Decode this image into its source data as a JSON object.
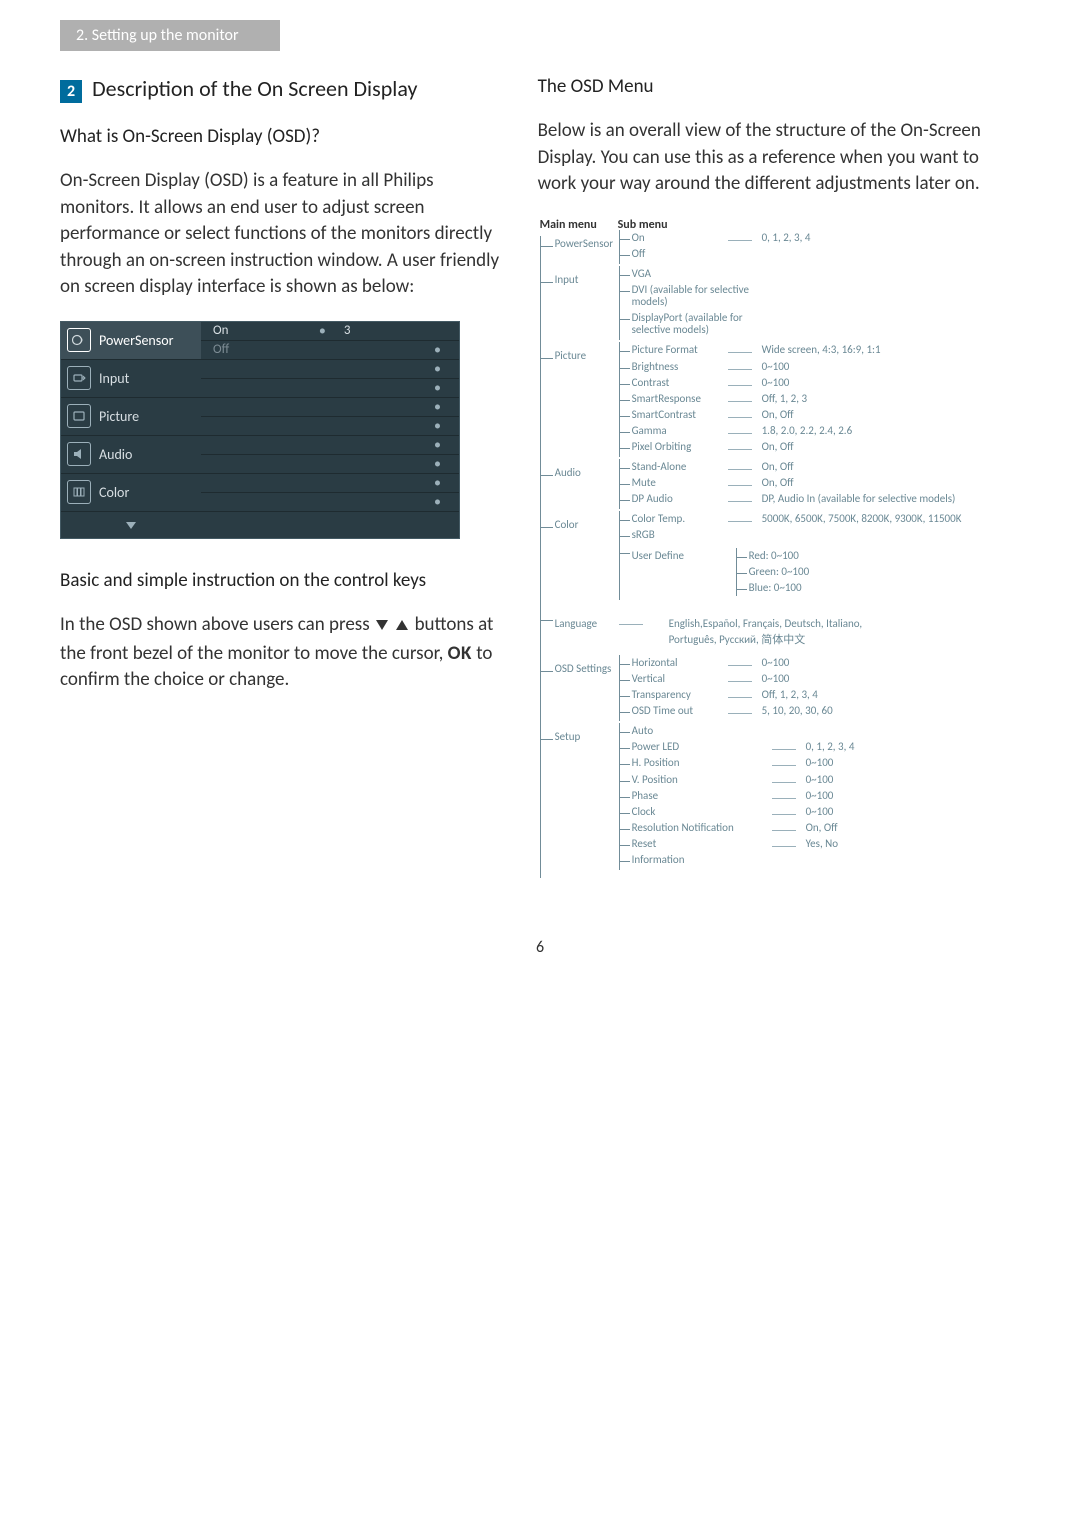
{
  "colors": {
    "header_bg": "#b0b0b0",
    "section_box_bg": "#006c9d",
    "osd_bg": "#2a3c44",
    "osd_border": "#445a64",
    "tree_line": "#718c98",
    "tree_text": "#6a8894"
  },
  "header": {
    "breadcrumb": "2. Setting up the monitor"
  },
  "left": {
    "section_number": "2",
    "section_title": "Description of the On Screen Display",
    "subtitle1": "What is On-Screen Display (OSD)?",
    "p1": "On-Screen Display (OSD) is a feature in all Philips monitors. It allows an end user to adjust screen performance or select functions of the monitors directly through an on-screen instruction window. A user friendly on screen display interface is shown as below:",
    "osd_screenshot": {
      "items": [
        {
          "name": "PowerSensor",
          "sub": [
            "On",
            "Off"
          ],
          "selected": true,
          "value": "3",
          "value_row": 0,
          "icon": "power"
        },
        {
          "name": "Input",
          "sub": [
            "",
            ""
          ],
          "icon": "input"
        },
        {
          "name": "Picture",
          "sub": [
            "",
            ""
          ],
          "icon": "picture"
        },
        {
          "name": "Audio",
          "sub": [
            "",
            ""
          ],
          "icon": "audio"
        },
        {
          "name": "Color",
          "sub": [
            "",
            ""
          ],
          "icon": "color"
        }
      ]
    },
    "subtitle2": "Basic and simple instruction on the control keys",
    "p2_a": "In the OSD shown above users can press ",
    "p2_b": " buttons at the front bezel of the monitor to move the cursor,  ",
    "p2_ok": "OK",
    "p2_c": " to confirm the choice or change."
  },
  "right": {
    "subtitle": "The OSD Menu",
    "p1": "Below is an overall view of the structure of the On-Screen Display. You can use this as a reference when you want to work your way around the different adjustments later on.",
    "tree_headers": {
      "main": "Main menu",
      "sub": "Sub menu"
    },
    "tree": [
      {
        "label": "PowerSensor",
        "subs": [
          {
            "label": "On",
            "val": "0, 1, 2, 3, 4"
          },
          {
            "label": "Off"
          }
        ]
      },
      {
        "label": "Input",
        "subs": [
          {
            "label": "VGA"
          },
          {
            "label": "DVI (available for selective models)",
            "wide": true
          },
          {
            "label": "DisplayPort (available for selective models)",
            "wide": true
          }
        ]
      },
      {
        "label": "Picture",
        "subs": [
          {
            "label": "Picture Format",
            "val": "Wide screen, 4:3, 16:9, 1:1"
          },
          {
            "label": "Brightness",
            "val": "0~100"
          },
          {
            "label": "Contrast",
            "val": "0~100"
          },
          {
            "label": "SmartResponse",
            "val": "Off, 1, 2, 3"
          },
          {
            "label": "SmartContrast",
            "val": "On, Off"
          },
          {
            "label": "Gamma",
            "val": "1.8, 2.0, 2.2, 2.4, 2.6"
          },
          {
            "label": "Pixel Orbiting",
            "val": "On, Off"
          }
        ]
      },
      {
        "label": "Audio",
        "subs": [
          {
            "label": "Stand-Alone",
            "val": "On, Off"
          },
          {
            "label": "Mute",
            "val": "On, Off"
          },
          {
            "label": "DP Audio",
            "val": "DP, Audio In (available for selective models)"
          }
        ]
      },
      {
        "label": "Color",
        "subs": [
          {
            "label": "Color Temp.",
            "val": "5000K, 6500K, 7500K, 8200K, 9300K, 11500K"
          },
          {
            "label": "sRGB"
          },
          {
            "label": "User Define",
            "children": [
              "Red: 0~100",
              "Green: 0~100",
              "Blue: 0~100"
            ]
          }
        ]
      },
      {
        "label": "Language",
        "lang_lines": [
          "English,Español, Français, Deutsch, Italiano,",
          "Português, Русский, 简体中文"
        ]
      },
      {
        "label": "OSD Settings",
        "subs": [
          {
            "label": "Horizontal",
            "val": "0~100"
          },
          {
            "label": "Vertical",
            "val": "0~100"
          },
          {
            "label": "Transparency",
            "val": "Off, 1, 2, 3, 4"
          },
          {
            "label": "OSD Time out",
            "val": "5, 10, 20, 30, 60"
          }
        ]
      },
      {
        "label": "Setup",
        "subs": [
          {
            "label": "Auto"
          },
          {
            "label": "Power LED",
            "val": "0, 1, 2, 3, 4",
            "wide": true
          },
          {
            "label": "H. Position",
            "val": "0~100",
            "wide": true
          },
          {
            "label": "V. Position",
            "val": "0~100",
            "wide": true
          },
          {
            "label": "Phase",
            "val": "0~100",
            "wide": true
          },
          {
            "label": "Clock",
            "val": "0~100",
            "wide": true
          },
          {
            "label": "Resolution Notification",
            "val": "On, Off",
            "wide": true
          },
          {
            "label": "Reset",
            "val": "Yes, No",
            "wide": true
          },
          {
            "label": "Information",
            "wide": true
          }
        ]
      }
    ]
  },
  "page_number": "6"
}
